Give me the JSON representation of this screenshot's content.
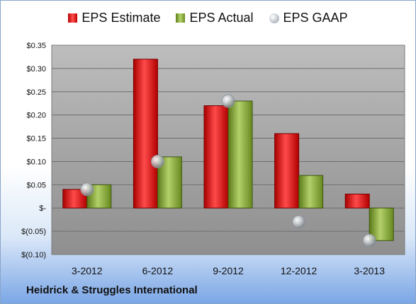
{
  "chart_data": {
    "type": "bar",
    "categories": [
      "3-2012",
      "6-2012",
      "9-2012",
      "12-2012",
      "3-2013"
    ],
    "series": [
      {
        "name": "EPS Estimate",
        "values": [
          0.04,
          0.32,
          0.22,
          0.16,
          0.03
        ],
        "color": "#d01010"
      },
      {
        "name": "EPS Actual",
        "values": [
          0.05,
          0.11,
          0.23,
          0.07,
          -0.07
        ],
        "color": "#8fb040"
      },
      {
        "name": "EPS GAAP",
        "values": [
          0.04,
          0.1,
          0.23,
          -0.03,
          -0.07
        ],
        "color": "#b8bec4",
        "render": "marker"
      }
    ],
    "ylim": [
      -0.1,
      0.35
    ],
    "yticks": [
      0.35,
      0.3,
      0.25,
      0.2,
      0.15,
      0.1,
      0.05,
      0,
      -0.05,
      -0.1
    ],
    "ytick_labels": [
      "$0.35",
      "$0.30",
      "$0.25",
      "$0.20",
      "$0.15",
      "$0.10",
      "$0.05",
      "$-",
      "$(0.05)",
      "$(0.10)"
    ],
    "grid": true,
    "legend": "top-center",
    "plot_background": "#a6a6a6"
  },
  "legend": {
    "estimate": "EPS Estimate",
    "actual": "EPS Actual",
    "gaap": "EPS GAAP"
  },
  "company": "Heidrick & Struggles International"
}
